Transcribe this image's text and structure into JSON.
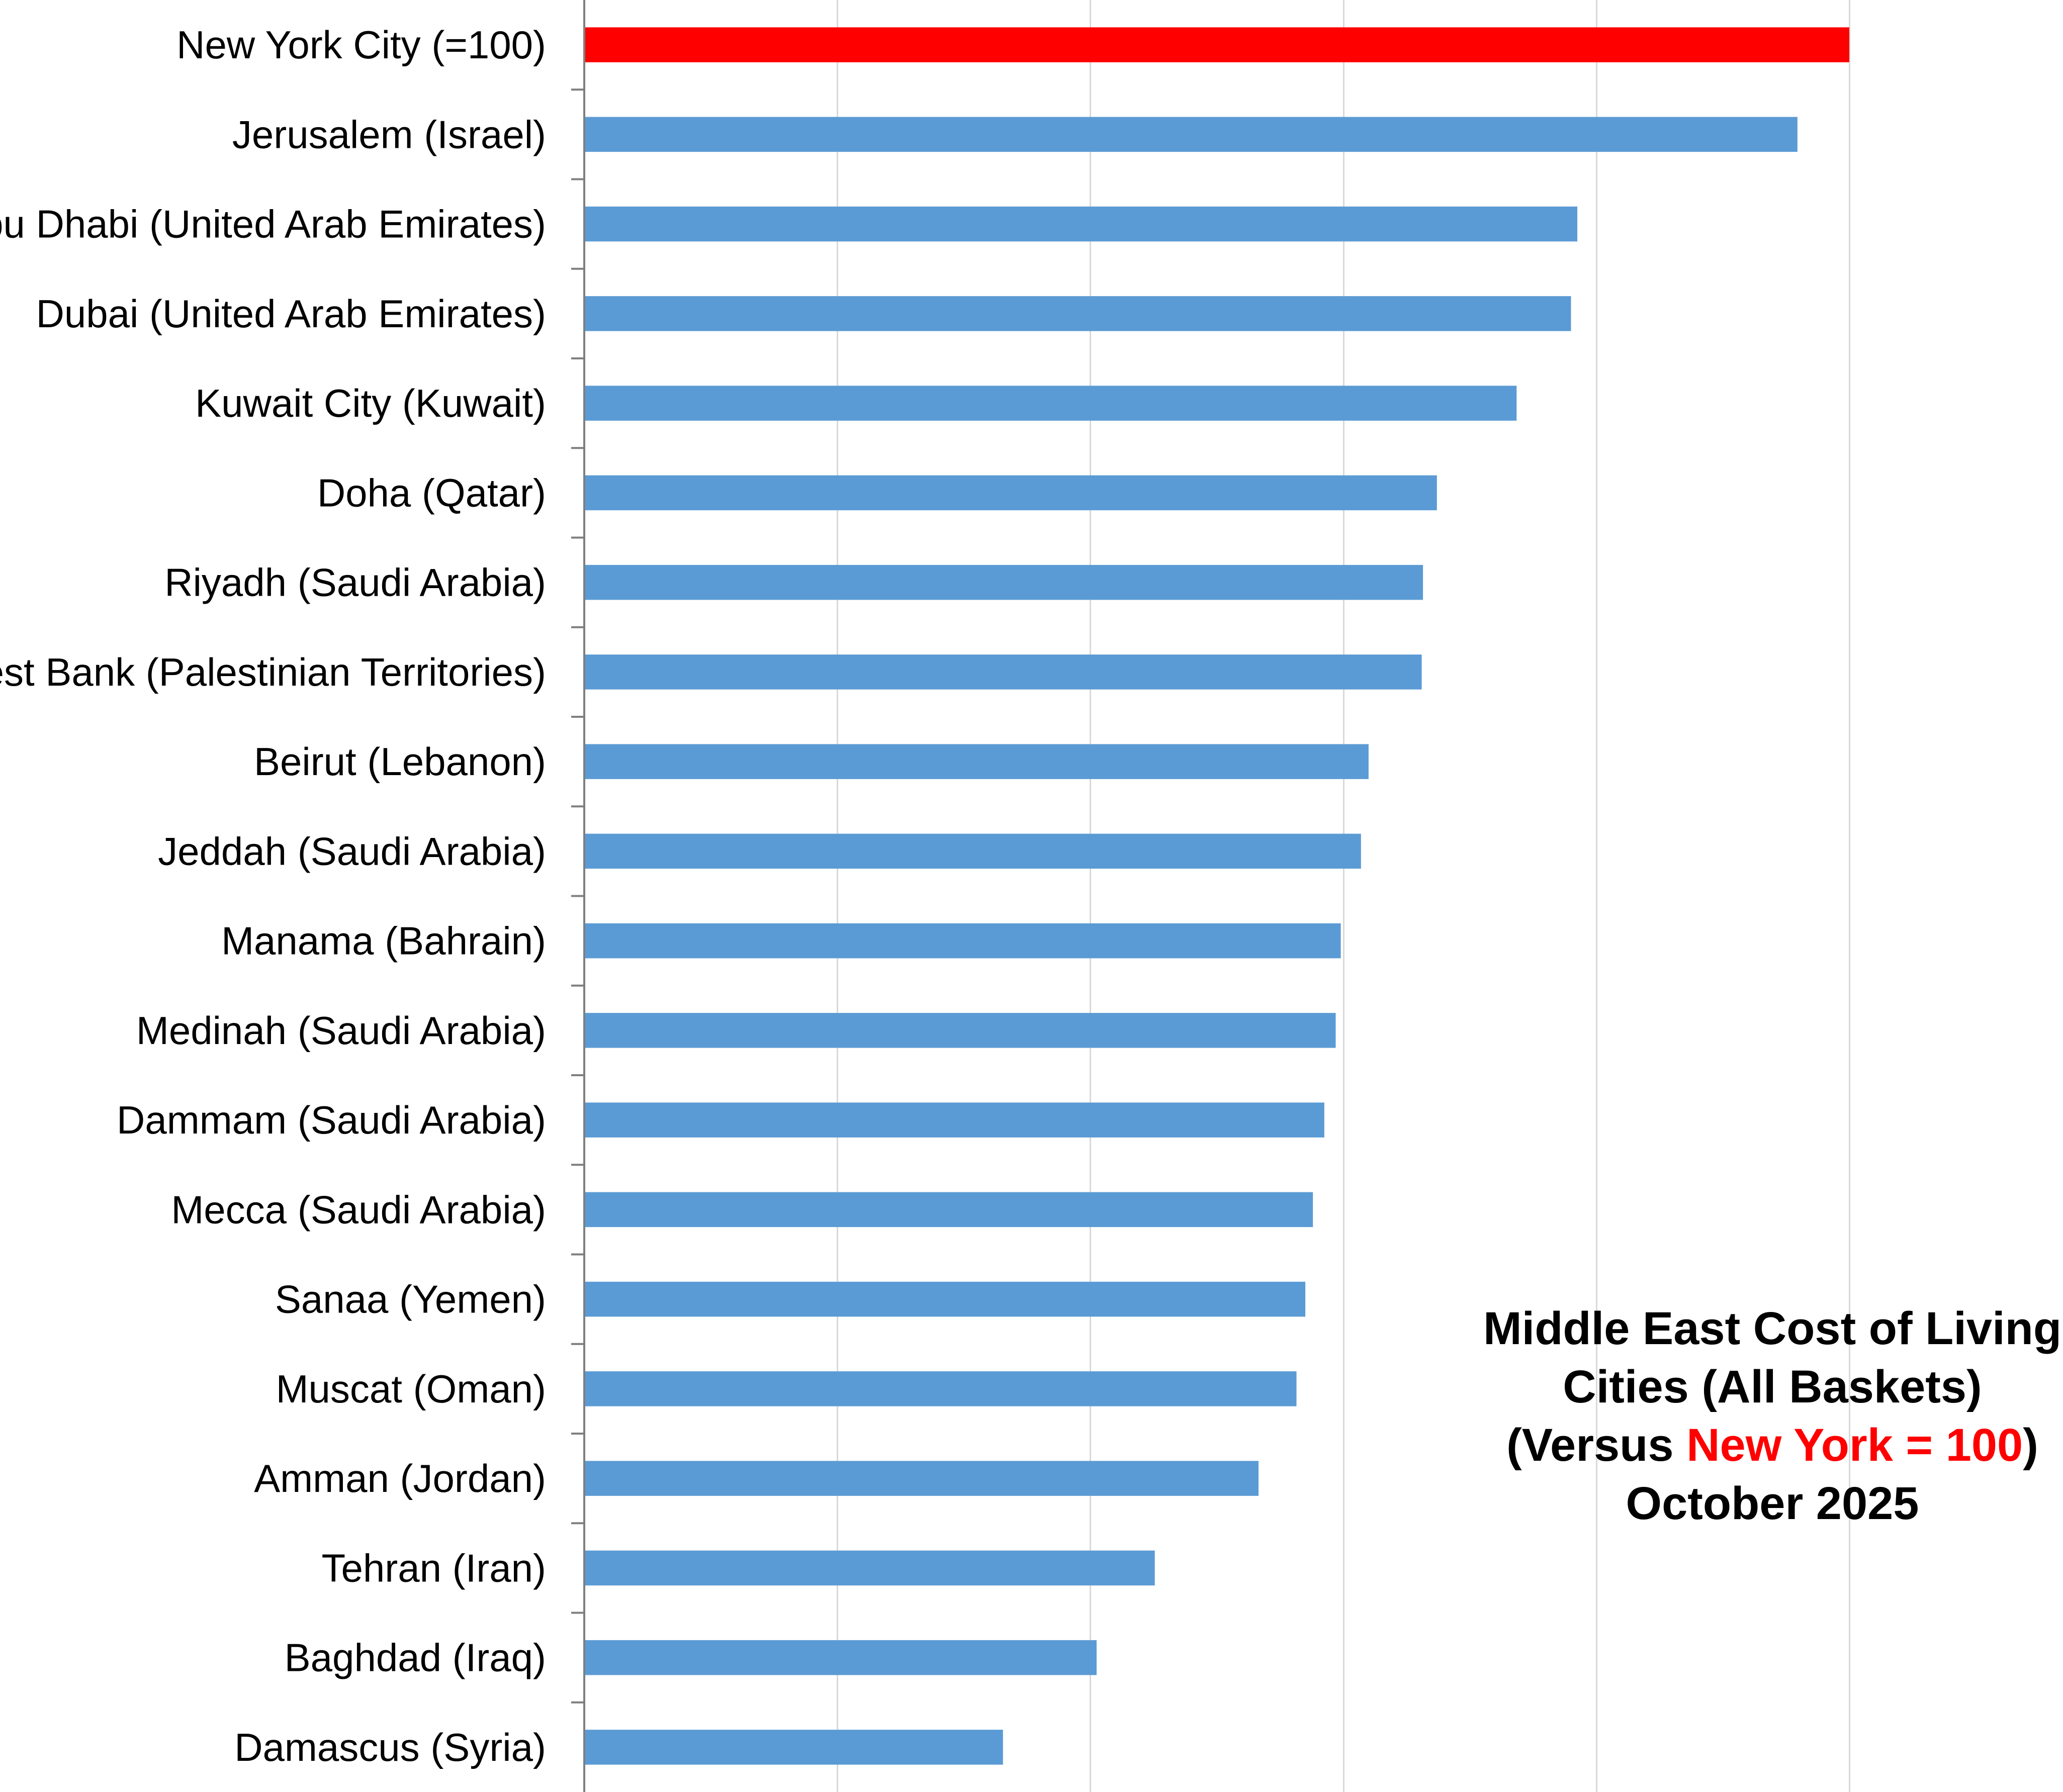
{
  "chart_data": {
    "type": "bar",
    "orientation": "horizontal",
    "title": {
      "line1": "Middle East  Cost of Living",
      "line2": "Cities (All Baskets)",
      "line3_prefix": "(Versus ",
      "line3_highlight": "New York = 100",
      "line3_suffix": ")",
      "line4": "October 2025"
    },
    "categories": [
      "New York City (=100)",
      "Jerusalem (Israel)",
      "Abu Dhabi (United Arab Emirates)",
      "Dubai (United Arab Emirates)",
      "Kuwait City (Kuwait)",
      "Doha (Qatar)",
      "Riyadh (Saudi Arabia)",
      "West Bank (Palestinian Territories)",
      "Beirut (Lebanon)",
      "Jeddah (Saudi Arabia)",
      "Manama (Bahrain)",
      "Medinah (Saudi Arabia)",
      "Dammam (Saudi Arabia)",
      "Mecca (Saudi Arabia)",
      "Sanaa (Yemen)",
      "Muscat (Oman)",
      "Amman (Jordan)",
      "Tehran (Iran)",
      "Baghdad (Iraq)",
      "Damascus (Syria)"
    ],
    "values": [
      100,
      95.9,
      78.5,
      78.0,
      73.7,
      67.4,
      66.3,
      66.2,
      62.0,
      61.4,
      59.8,
      59.4,
      58.5,
      57.6,
      57.0,
      56.3,
      53.3,
      45.1,
      40.5,
      33.1
    ],
    "xlim": [
      0,
      120
    ],
    "gridlines_x": [
      20,
      40,
      60,
      80,
      100,
      120
    ],
    "highlight_index": 0,
    "colors": {
      "highlight": "#ff0000",
      "bar": "#5b9bd5",
      "grid": "#d9d9d9",
      "axis": "#7f7f7f",
      "text": "#000000"
    },
    "grid": true,
    "legend": "none"
  }
}
